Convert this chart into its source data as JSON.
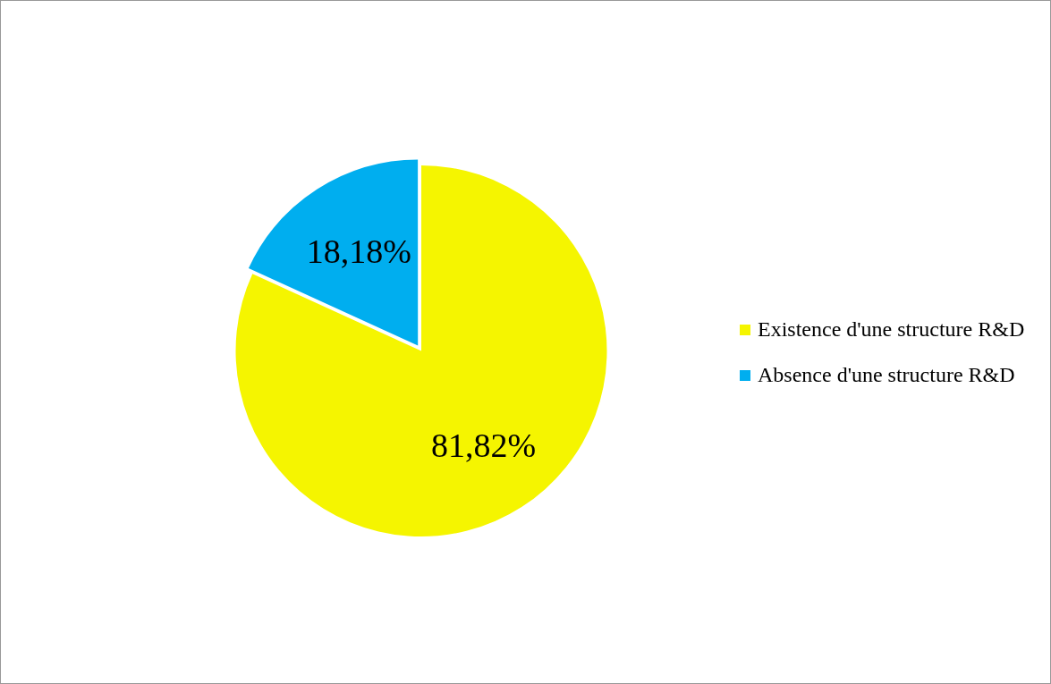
{
  "chart_data": {
    "type": "pie",
    "categories": [
      "Existence d'une structure R&D",
      "Absence d'une structure R&D"
    ],
    "values": [
      81.82,
      18.18
    ],
    "colors": [
      "#f5f500",
      "#00aeef"
    ],
    "value_labels": [
      "81,82%",
      "18,18%"
    ],
    "legend": "right"
  }
}
